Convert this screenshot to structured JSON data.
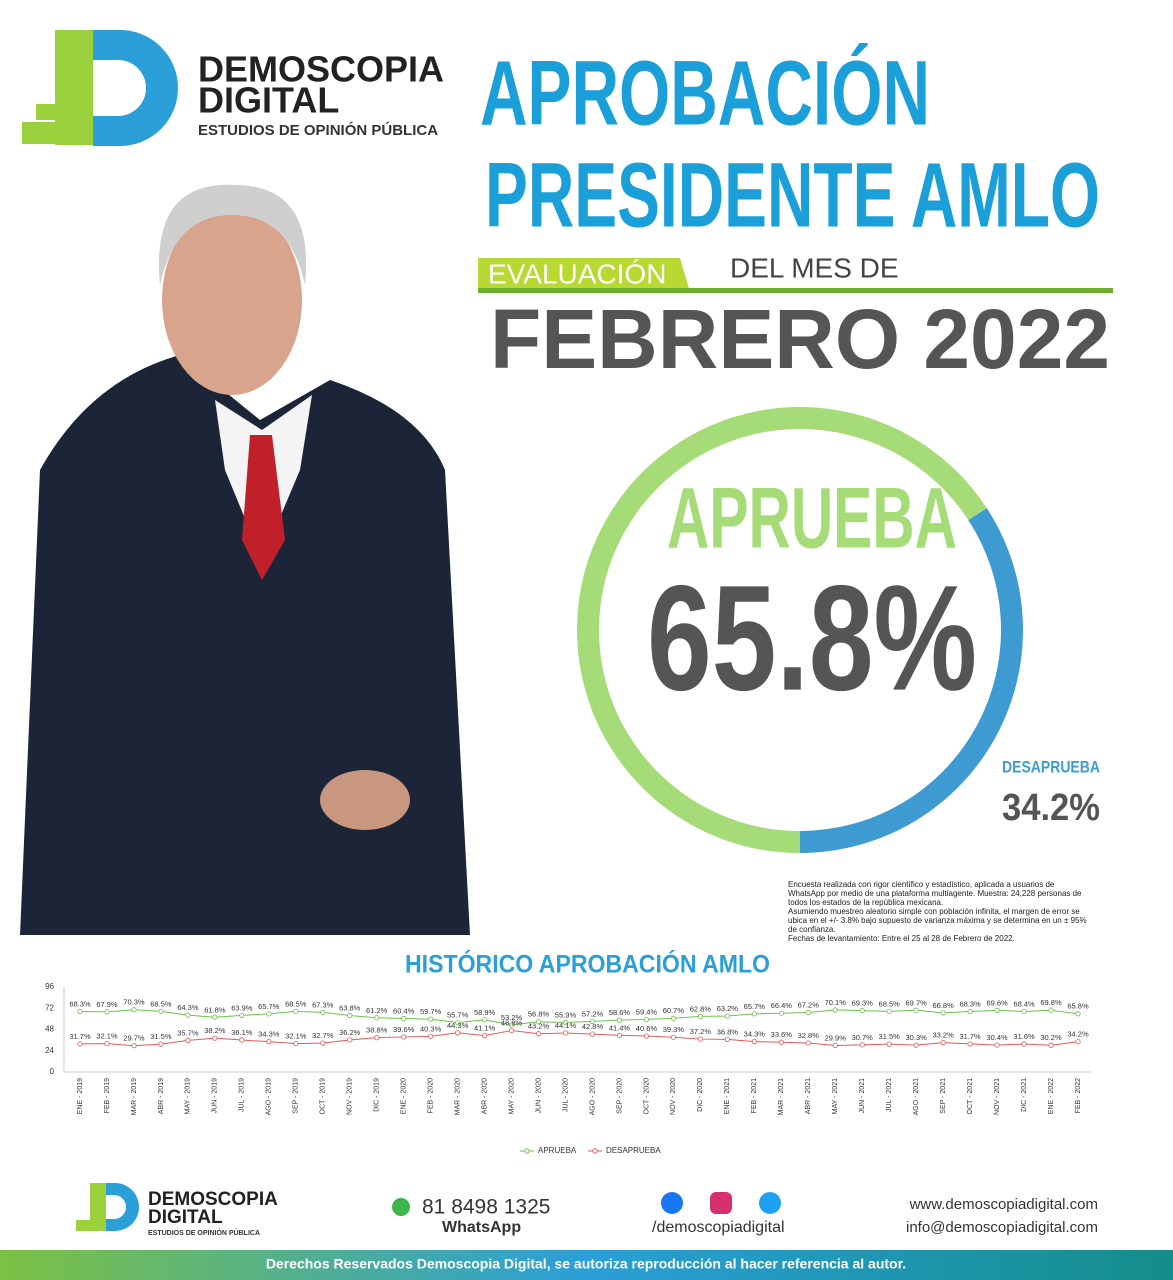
{
  "header": {
    "logo": {
      "name1": "DEMOSCOPIA",
      "name2": "DIGITAL",
      "tagline": "ESTUDIOS DE OPINIÓN PÚBLICA"
    },
    "title1": "APROBACIÓN",
    "title2": "PRESIDENTE AMLO",
    "badge": "EVALUACIÓN",
    "period_prefix": "DEL MES DE",
    "period": "FEBRERO 2022"
  },
  "note": [
    "Encuesta realizada con rigor científico y estadístico, aplicada a usuarios de",
    "WhatsApp por medio de una plataforma multiagente. Muestra: 24,228 personas de",
    "todos los estados de la república mexicana.",
    "Asumiendo muestreo aleatorio simple con población infinita, el margen de error se",
    "ubica en el +/- 3.8% bajo supuesto de varianza máxima y se determina en un ± 95%",
    "de confianza.",
    "Fechas de levantamiento: Entre el 25 al 28 de Febrero de 2022."
  ],
  "chart_data": [
    {
      "type": "donut",
      "categories": [
        "APRUEBA",
        "DESAPRUEBA"
      ],
      "values": [
        65.8,
        34.2
      ],
      "value_labels": [
        "65.8%",
        "34.2%"
      ],
      "colors": [
        "#a6dc78",
        "#3d9bd1"
      ]
    },
    {
      "type": "line",
      "title": "HISTÓRICO APROBACIÓN AMLO",
      "categories": [
        "ENE - 2019",
        "FEB - 2019",
        "MAR - 2019",
        "ABR - 2019",
        "MAY - 2019",
        "JUN - 2019",
        "JUL - 2019",
        "AGO - 2019",
        "SEP - 2019",
        "OCT - 2019",
        "NOV - 2019",
        "DIC - 2019",
        "ENE - 2020",
        "FEB - 2020",
        "MAR - 2020",
        "ABR - 2020",
        "MAY - 2020",
        "JUN - 2020",
        "JUL - 2020",
        "AGO - 2020",
        "SEP - 2020",
        "OCT - 2020",
        "NOV - 2020",
        "DIC - 2020",
        "ENE - 2021",
        "FEB - 2021",
        "MAR - 2021",
        "ABR - 2021",
        "MAY - 2021",
        "JUN - 2021",
        "JUL - 2021",
        "AGO - 2021",
        "SEP - 2021",
        "OCT - 2021",
        "NOV - 2021",
        "DIC - 2021",
        "ENE - 2022",
        "FEB - 2022"
      ],
      "series": [
        {
          "name": "APRUEBA",
          "color": "#6cc24a",
          "values": [
            68.3,
            67.9,
            70.3,
            68.5,
            64.3,
            61.8,
            63.9,
            65.7,
            68.5,
            67.3,
            63.8,
            61.2,
            60.4,
            59.7,
            55.7,
            58.9,
            53.2,
            56.8,
            55.9,
            57.2,
            58.6,
            59.4,
            60.7,
            62.8,
            63.2,
            65.7,
            66.4,
            67.2,
            70.1,
            69.3,
            68.5,
            69.7,
            66.8,
            68.3,
            69.6,
            68.4,
            69.8,
            65.8
          ],
          "value_labels": [
            "68.3%",
            "67.9%",
            "70.3%",
            "68.5%",
            "64.3%",
            "61.8%",
            "63.9%",
            "65.7%",
            "68.5%",
            "67.3%",
            "63.8%",
            "61.2%",
            "60.4%",
            "59.7%",
            "55.7%",
            "58.9%",
            "53.2%",
            "56.8%",
            "55.9%",
            "57.2%",
            "58.6%",
            "59.4%",
            "60.7%",
            "62.8%",
            "63.2%",
            "65.7%",
            "66.4%",
            "67.2%",
            "70.1%",
            "69.3%",
            "68.5%",
            "69.7%",
            "66.8%",
            "68.3%",
            "69.6%",
            "68.4%",
            "69.8%",
            "65.8%"
          ]
        },
        {
          "name": "DESAPRUEBA",
          "color": "#e05a5a",
          "values": [
            31.7,
            32.1,
            29.7,
            31.5,
            35.7,
            38.2,
            36.1,
            34.3,
            32.1,
            32.7,
            36.2,
            38.8,
            39.6,
            40.3,
            44.3,
            41.1,
            46.8,
            43.2,
            44.1,
            42.8,
            41.4,
            40.6,
            39.3,
            37.2,
            36.8,
            34.3,
            33.6,
            32.8,
            29.9,
            30.7,
            31.5,
            30.3,
            33.2,
            31.7,
            30.4,
            31.6,
            30.2,
            34.2
          ],
          "value_labels": [
            "31.7%",
            "32.1%",
            "29.7%",
            "31.5%",
            "35.7%",
            "38.2%",
            "36.1%",
            "34.3%",
            "32.1%",
            "32.7%",
            "36.2%",
            "38.8%",
            "39.6%",
            "40.3%",
            "44.3%",
            "41.1%",
            "46.8%",
            "43.2%",
            "44.1%",
            "42.8%",
            "41.4%",
            "40.6%",
            "39.3%",
            "37.2%",
            "36.8%",
            "34.3%",
            "33.6%",
            "32.8%",
            "29.9%",
            "30.7%",
            "31.5%",
            "30.3%",
            "33.2%",
            "31.7%",
            "30.4%",
            "31.6%",
            "30.2%",
            "34.2%"
          ]
        }
      ],
      "ylim": [
        0,
        96
      ],
      "yticks": [
        0,
        24,
        48,
        72,
        96
      ],
      "grid": false,
      "legend": "bottom"
    }
  ],
  "footer": {
    "logo": {
      "name1": "DEMOSCOPIA",
      "name2": "DIGITAL",
      "tagline": "ESTUDIOS DE OPINIÓN PÚBLICA"
    },
    "phone": "81 8498 1325",
    "phone_label": "WhatsApp",
    "social": "/demoscopiadigital",
    "web": "www.demoscopiadigital.com",
    "email": "info@demoscopiadigital.com",
    "rights": "Derechos Reservados Demoscopia Digital, se autoriza reproducción al hacer referencia al autor."
  }
}
